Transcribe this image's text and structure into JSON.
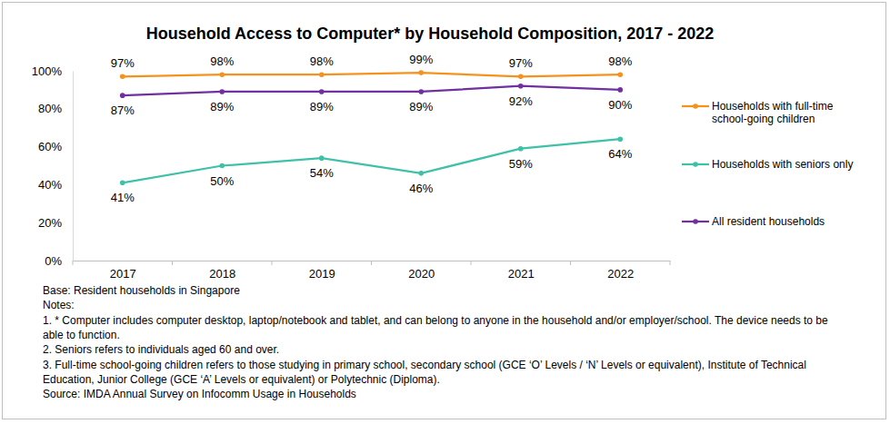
{
  "chart_data": {
    "type": "line",
    "title": "Household Access to Computer* by Household Composition, 2017 - 2022",
    "categories": [
      "2017",
      "2018",
      "2019",
      "2020",
      "2021",
      "2022"
    ],
    "series": [
      {
        "name": "Households with full-time school-going children",
        "color": "#f5921e",
        "values": [
          97,
          98,
          98,
          99,
          97,
          98
        ],
        "value_labels": [
          "97%",
          "98%",
          "98%",
          "99%",
          "97%",
          "98%"
        ]
      },
      {
        "name": "Households with seniors only",
        "color": "#3ec1a8",
        "values": [
          41,
          50,
          54,
          46,
          59,
          64
        ],
        "value_labels": [
          "41%",
          "50%",
          "54%",
          "46%",
          "59%",
          "64%"
        ]
      },
      {
        "name": "All resident households",
        "color": "#7030a0",
        "values": [
          87,
          89,
          89,
          89,
          92,
          90
        ],
        "value_labels": [
          "87%",
          "89%",
          "89%",
          "89%",
          "92%",
          "90%"
        ]
      }
    ],
    "ylim": [
      0,
      100
    ],
    "yticks": [
      {
        "value": 0,
        "label": "0%"
      },
      {
        "value": 20,
        "label": "20%"
      },
      {
        "value": 40,
        "label": "40%"
      },
      {
        "value": 60,
        "label": "60%"
      },
      {
        "value": 80,
        "label": "80%"
      },
      {
        "value": 100,
        "label": "100%"
      }
    ],
    "grid": false,
    "legend": "right",
    "data_labels": true,
    "marker": "circle",
    "line_style": "solid",
    "footnotes": [
      "Base: Resident households in Singapore",
      "Notes:",
      "1. * Computer includes computer desktop, laptop/notebook and tablet, and can belong to anyone in the household and/or employer/school. The device needs to be",
      "able to function.",
      "2. Seniors refers to individuals aged 60 and over.",
      "3. Full-time school-going children refers to those studying in primary school, secondary school (GCE ‘O’ Levels / ‘N’ Levels or equivalent), Institute of Technical",
      "Education, Junior College (GCE ‘A’ Levels or equivalent) or Polytechnic (Diploma).",
      "Source: IMDA Annual Survey on Infocomm Usage in Households"
    ]
  }
}
